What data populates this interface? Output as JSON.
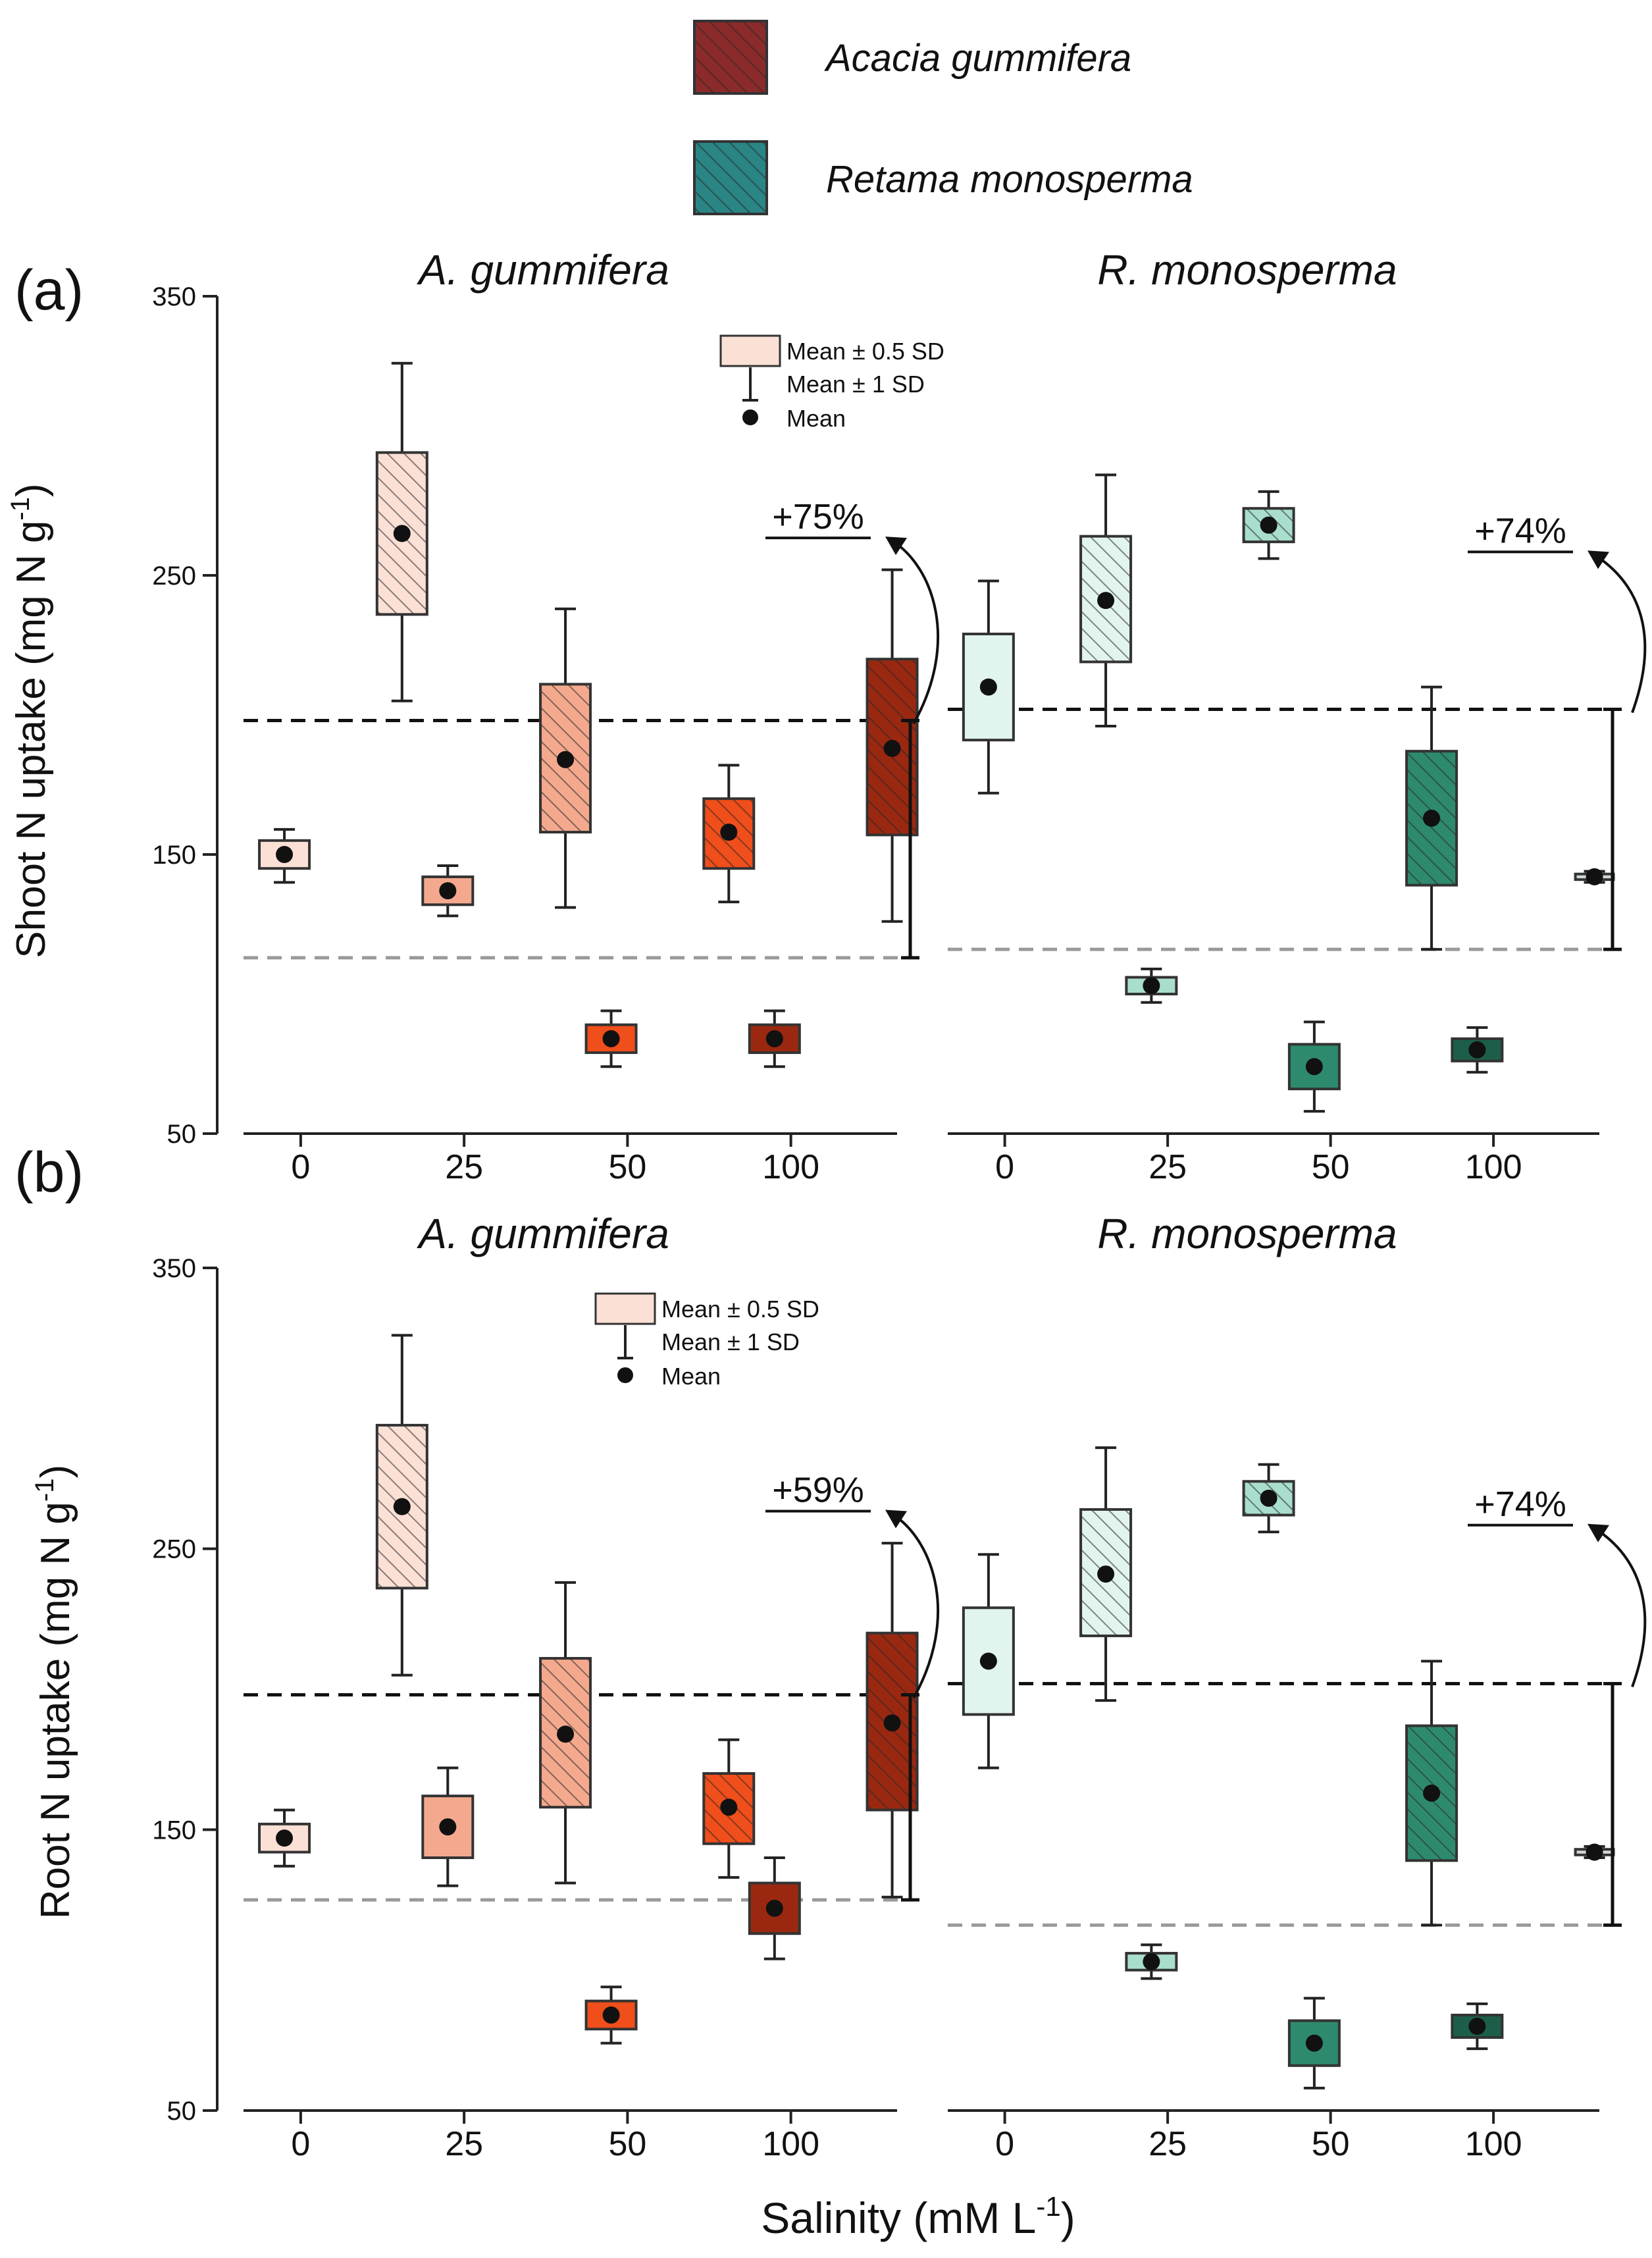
{
  "legend": {
    "species": [
      {
        "label": "Acacia gummifera",
        "color": "#8b2a2a"
      },
      {
        "label": "Retama monosperma",
        "color": "#2a8585"
      }
    ]
  },
  "stat_legend": {
    "box_label": "Mean ± 0.5 SD",
    "whisker_label": "Mean ± 1 SD",
    "mean_label": "Mean"
  },
  "x_label_main": "Salinity (mM L",
  "x_label_sup": "-1",
  "x_label_end": ")",
  "chart_data": [
    {
      "type": "box",
      "panel_label": "(a)",
      "ylabel_main": "Shoot N uptake  (mg N g",
      "ylabel_sup": "-1",
      "ylabel_end": ")",
      "ylim": [
        50,
        350
      ],
      "yticks": [
        50,
        150,
        250,
        350
      ],
      "categories": [
        "0",
        "25",
        "50",
        "100"
      ],
      "xlabel": "Salinity (mM L-1)",
      "subplots": [
        {
          "title": "A. gummifera",
          "increase_label": "+75%",
          "ref_lines": {
            "upper": 198,
            "lower": 113
          },
          "boxes": [
            {
              "category": "0",
              "treatment": "non-inoculated",
              "mean": 150,
              "q_low": 145,
              "q_high": 155,
              "w_low": 140,
              "w_high": 159,
              "color": "#fbe0d6",
              "hatch": false
            },
            {
              "category": "0",
              "treatment": "inoculated",
              "mean": 265,
              "q_low": 236,
              "q_high": 294,
              "w_low": 205,
              "w_high": 326,
              "color": "#fbe0d6",
              "hatch": true
            },
            {
              "category": "25",
              "treatment": "non-inoculated",
              "mean": 137,
              "q_low": 132,
              "q_high": 142,
              "w_low": 128,
              "w_high": 146,
              "color": "#f4a98e",
              "hatch": false
            },
            {
              "category": "25",
              "treatment": "inoculated",
              "mean": 184,
              "q_low": 158,
              "q_high": 211,
              "w_low": 131,
              "w_high": 238,
              "color": "#f4a98e",
              "hatch": true
            },
            {
              "category": "50",
              "treatment": "non-inoculated",
              "mean": 84,
              "q_low": 79,
              "q_high": 89,
              "w_low": 74,
              "w_high": 94,
              "color": "#f04e1a",
              "hatch": false
            },
            {
              "category": "50",
              "treatment": "inoculated",
              "mean": 158,
              "q_low": 145,
              "q_high": 170,
              "w_low": 133,
              "w_high": 182,
              "color": "#f04e1a",
              "hatch": true
            },
            {
              "category": "100",
              "treatment": "non-inoculated",
              "mean": 84,
              "q_low": 79,
              "q_high": 89,
              "w_low": 74,
              "w_high": 94,
              "color": "#9a2810",
              "hatch": false
            },
            {
              "category": "100",
              "treatment": "inoculated",
              "mean": 188,
              "q_low": 157,
              "q_high": 220,
              "w_low": 126,
              "w_high": 252,
              "color": "#9a2810",
              "hatch": true
            }
          ]
        },
        {
          "title": "R. monosperma",
          "increase_label": "+74%",
          "ref_lines": {
            "upper": 202,
            "lower": 116
          },
          "boxes": [
            {
              "category": "0",
              "treatment": "non-inoculated",
              "mean": 210,
              "q_low": 191,
              "q_high": 229,
              "w_low": 172,
              "w_high": 248,
              "color": "#e2f4ee",
              "hatch": false
            },
            {
              "category": "0",
              "treatment": "inoculated",
              "mean": 241,
              "q_low": 219,
              "q_high": 264,
              "w_low": 196,
              "w_high": 286,
              "color": "#e2f4ee",
              "hatch": true
            },
            {
              "category": "25",
              "treatment": "non-inoculated",
              "mean": 103,
              "q_low": 100,
              "q_high": 106,
              "w_low": 97,
              "w_high": 109,
              "color": "#a9dece",
              "hatch": false
            },
            {
              "category": "25",
              "treatment": "inoculated",
              "mean": 268,
              "q_low": 262,
              "q_high": 274,
              "w_low": 256,
              "w_high": 280,
              "color": "#a9dece",
              "hatch": true
            },
            {
              "category": "50",
              "treatment": "non-inoculated",
              "mean": 74,
              "q_low": 66,
              "q_high": 82,
              "w_low": 58,
              "w_high": 90,
              "color": "#2e8a6e",
              "hatch": false
            },
            {
              "category": "50",
              "treatment": "inoculated",
              "mean": 163,
              "q_low": 139,
              "q_high": 187,
              "w_low": 116,
              "w_high": 210,
              "color": "#2e8a6e",
              "hatch": true
            },
            {
              "category": "100",
              "treatment": "non-inoculated",
              "mean": 80,
              "q_low": 76,
              "q_high": 84,
              "w_low": 72,
              "w_high": 88,
              "color": "#1d5e4a",
              "hatch": false
            },
            {
              "category": "100",
              "treatment": "inoculated",
              "mean": 142,
              "q_low": 141,
              "q_high": 143,
              "w_low": 140,
              "w_high": 144,
              "color": "#cfd8d4",
              "hatch": false
            }
          ]
        }
      ]
    },
    {
      "type": "box",
      "panel_label": "(b)",
      "ylabel_main": "Root N uptake  (mg N g",
      "ylabel_sup": "-1",
      "ylabel_end": ")",
      "ylim": [
        50,
        350
      ],
      "yticks": [
        50,
        150,
        250,
        350
      ],
      "categories": [
        "0",
        "25",
        "50",
        "100"
      ],
      "xlabel": "Salinity (mM L-1)",
      "subplots": [
        {
          "title": "A. gummifera",
          "increase_label": "+59%",
          "ref_lines": {
            "upper": 198,
            "lower": 125
          },
          "boxes": [
            {
              "category": "0",
              "treatment": "non-inoculated",
              "mean": 147,
              "q_low": 142,
              "q_high": 152,
              "w_low": 137,
              "w_high": 157,
              "color": "#fbe0d6",
              "hatch": false
            },
            {
              "category": "0",
              "treatment": "inoculated",
              "mean": 265,
              "q_low": 236,
              "q_high": 294,
              "w_low": 205,
              "w_high": 326,
              "color": "#fbe0d6",
              "hatch": true
            },
            {
              "category": "25",
              "treatment": "non-inoculated",
              "mean": 151,
              "q_low": 140,
              "q_high": 162,
              "w_low": 130,
              "w_high": 172,
              "color": "#f4a98e",
              "hatch": false
            },
            {
              "category": "25",
              "treatment": "inoculated",
              "mean": 184,
              "q_low": 158,
              "q_high": 211,
              "w_low": 131,
              "w_high": 238,
              "color": "#f4a98e",
              "hatch": true
            },
            {
              "category": "50",
              "treatment": "non-inoculated",
              "mean": 84,
              "q_low": 79,
              "q_high": 89,
              "w_low": 74,
              "w_high": 94,
              "color": "#f04e1a",
              "hatch": false
            },
            {
              "category": "50",
              "treatment": "inoculated",
              "mean": 158,
              "q_low": 145,
              "q_high": 170,
              "w_low": 133,
              "w_high": 182,
              "color": "#f04e1a",
              "hatch": true
            },
            {
              "category": "100",
              "treatment": "non-inoculated",
              "mean": 122,
              "q_low": 113,
              "q_high": 131,
              "w_low": 104,
              "w_high": 140,
              "color": "#9a2810",
              "hatch": false
            },
            {
              "category": "100",
              "treatment": "inoculated",
              "mean": 188,
              "q_low": 157,
              "q_high": 220,
              "w_low": 126,
              "w_high": 252,
              "color": "#9a2810",
              "hatch": true
            }
          ]
        },
        {
          "title": "R. monosperma",
          "increase_label": "+74%",
          "ref_lines": {
            "upper": 202,
            "lower": 116
          },
          "boxes": [
            {
              "category": "0",
              "treatment": "non-inoculated",
              "mean": 210,
              "q_low": 191,
              "q_high": 229,
              "w_low": 172,
              "w_high": 248,
              "color": "#e2f4ee",
              "hatch": false
            },
            {
              "category": "0",
              "treatment": "inoculated",
              "mean": 241,
              "q_low": 219,
              "q_high": 264,
              "w_low": 196,
              "w_high": 286,
              "color": "#e2f4ee",
              "hatch": true
            },
            {
              "category": "25",
              "treatment": "non-inoculated",
              "mean": 103,
              "q_low": 100,
              "q_high": 106,
              "w_low": 97,
              "w_high": 109,
              "color": "#a9dece",
              "hatch": false
            },
            {
              "category": "25",
              "treatment": "inoculated",
              "mean": 268,
              "q_low": 262,
              "q_high": 274,
              "w_low": 256,
              "w_high": 280,
              "color": "#a9dece",
              "hatch": true
            },
            {
              "category": "50",
              "treatment": "non-inoculated",
              "mean": 74,
              "q_low": 66,
              "q_high": 82,
              "w_low": 58,
              "w_high": 90,
              "color": "#2e8a6e",
              "hatch": false
            },
            {
              "category": "50",
              "treatment": "inoculated",
              "mean": 163,
              "q_low": 139,
              "q_high": 187,
              "w_low": 116,
              "w_high": 210,
              "color": "#2e8a6e",
              "hatch": true
            },
            {
              "category": "100",
              "treatment": "non-inoculated",
              "mean": 80,
              "q_low": 76,
              "q_high": 84,
              "w_low": 72,
              "w_high": 88,
              "color": "#1d5e4a",
              "hatch": false
            },
            {
              "category": "100",
              "treatment": "inoculated",
              "mean": 142,
              "q_low": 141,
              "q_high": 143,
              "w_low": 140,
              "w_high": 144,
              "color": "#cfd8d4",
              "hatch": false
            }
          ]
        }
      ]
    }
  ]
}
